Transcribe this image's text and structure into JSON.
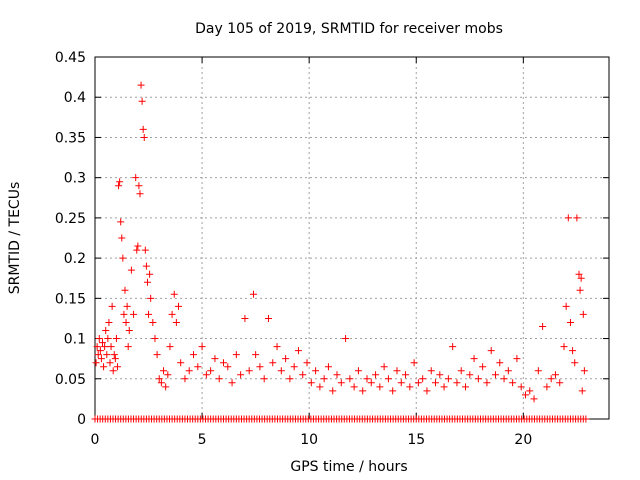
{
  "chart_data": {
    "type": "scatter",
    "title": "Day 105 of 2019, SRMTID for receiver mobs",
    "xlabel": "GPS time / hours",
    "ylabel": "SRMTID / TECUs",
    "xlim": [
      0,
      24
    ],
    "ylim": [
      0,
      0.45
    ],
    "xticks": [
      0,
      5,
      10,
      15,
      20
    ],
    "yticks": [
      0,
      0.05,
      0.1,
      0.15,
      0.2,
      0.25,
      0.3,
      0.35,
      0.4,
      0.45
    ],
    "xtick_labels": [
      "0",
      "5",
      "10",
      "15",
      "20"
    ],
    "ytick_labels": [
      "0",
      "0.05",
      "0.1",
      "0.15",
      "0.2",
      "0.25",
      "0.3",
      "0.35",
      "0.4",
      "0.45"
    ],
    "grid": true,
    "marker": "plus",
    "series": [
      {
        "name": "mobs",
        "color": "#ff0000",
        "points": [
          [
            0.05,
            0.07
          ],
          [
            0.1,
            0.09
          ],
          [
            0.15,
            0.08
          ],
          [
            0.2,
            0.1
          ],
          [
            0.25,
            0.085
          ],
          [
            0.3,
            0.075
          ],
          [
            0.35,
            0.095
          ],
          [
            0.4,
            0.065
          ],
          [
            0.45,
            0.09
          ],
          [
            0.5,
            0.11
          ],
          [
            0.55,
            0.08
          ],
          [
            0.6,
            0.1
          ],
          [
            0.65,
            0.12
          ],
          [
            0.7,
            0.07
          ],
          [
            0.75,
            0.09
          ],
          [
            0.8,
            0.14
          ],
          [
            0.85,
            0.06
          ],
          [
            0.9,
            0.08
          ],
          [
            0.95,
            0.075
          ],
          [
            1.0,
            0.1
          ],
          [
            1.05,
            0.065
          ],
          [
            1.1,
            0.29
          ],
          [
            1.15,
            0.295
          ],
          [
            1.2,
            0.245
          ],
          [
            1.25,
            0.225
          ],
          [
            1.3,
            0.2
          ],
          [
            1.35,
            0.13
          ],
          [
            1.4,
            0.16
          ],
          [
            1.45,
            0.12
          ],
          [
            1.5,
            0.14
          ],
          [
            1.55,
            0.09
          ],
          [
            1.6,
            0.11
          ],
          [
            1.7,
            0.185
          ],
          [
            1.8,
            0.13
          ],
          [
            1.9,
            0.3
          ],
          [
            1.95,
            0.21
          ],
          [
            2.0,
            0.215
          ],
          [
            2.05,
            0.29
          ],
          [
            2.1,
            0.28
          ],
          [
            2.15,
            0.415
          ],
          [
            2.2,
            0.395
          ],
          [
            2.25,
            0.36
          ],
          [
            2.3,
            0.35
          ],
          [
            2.35,
            0.21
          ],
          [
            2.4,
            0.19
          ],
          [
            2.45,
            0.17
          ],
          [
            2.5,
            0.13
          ],
          [
            2.55,
            0.18
          ],
          [
            2.6,
            0.15
          ],
          [
            2.7,
            0.12
          ],
          [
            2.8,
            0.1
          ],
          [
            2.9,
            0.08
          ],
          [
            3.0,
            0.05
          ],
          [
            3.1,
            0.045
          ],
          [
            3.2,
            0.06
          ],
          [
            3.3,
            0.04
          ],
          [
            3.4,
            0.055
          ],
          [
            3.5,
            0.09
          ],
          [
            3.6,
            0.13
          ],
          [
            3.7,
            0.155
          ],
          [
            3.8,
            0.12
          ],
          [
            3.9,
            0.14
          ],
          [
            4.0,
            0.07
          ],
          [
            4.2,
            0.05
          ],
          [
            4.4,
            0.06
          ],
          [
            4.6,
            0.08
          ],
          [
            4.8,
            0.065
          ],
          [
            5.0,
            0.09
          ],
          [
            5.2,
            0.055
          ],
          [
            5.4,
            0.06
          ],
          [
            5.6,
            0.075
          ],
          [
            5.8,
            0.05
          ],
          [
            6.0,
            0.07
          ],
          [
            6.2,
            0.065
          ],
          [
            6.4,
            0.045
          ],
          [
            6.6,
            0.08
          ],
          [
            6.8,
            0.055
          ],
          [
            7.0,
            0.125
          ],
          [
            7.2,
            0.06
          ],
          [
            7.4,
            0.155
          ],
          [
            7.5,
            0.08
          ],
          [
            7.7,
            0.065
          ],
          [
            7.9,
            0.05
          ],
          [
            8.1,
            0.125
          ],
          [
            8.3,
            0.07
          ],
          [
            8.5,
            0.09
          ],
          [
            8.7,
            0.06
          ],
          [
            8.9,
            0.075
          ],
          [
            9.1,
            0.05
          ],
          [
            9.3,
            0.065
          ],
          [
            9.5,
            0.085
          ],
          [
            9.7,
            0.055
          ],
          [
            9.9,
            0.07
          ],
          [
            10.1,
            0.045
          ],
          [
            10.3,
            0.06
          ],
          [
            10.5,
            0.04
          ],
          [
            10.7,
            0.05
          ],
          [
            10.9,
            0.065
          ],
          [
            11.1,
            0.035
          ],
          [
            11.3,
            0.055
          ],
          [
            11.5,
            0.045
          ],
          [
            11.7,
            0.1
          ],
          [
            11.9,
            0.05
          ],
          [
            12.1,
            0.04
          ],
          [
            12.3,
            0.06
          ],
          [
            12.5,
            0.035
          ],
          [
            12.7,
            0.05
          ],
          [
            12.9,
            0.045
          ],
          [
            13.1,
            0.055
          ],
          [
            13.3,
            0.04
          ],
          [
            13.5,
            0.065
          ],
          [
            13.7,
            0.05
          ],
          [
            13.9,
            0.035
          ],
          [
            14.1,
            0.06
          ],
          [
            14.3,
            0.045
          ],
          [
            14.5,
            0.055
          ],
          [
            14.7,
            0.04
          ],
          [
            14.9,
            0.07
          ],
          [
            15.1,
            0.045
          ],
          [
            15.3,
            0.05
          ],
          [
            15.5,
            0.035
          ],
          [
            15.7,
            0.06
          ],
          [
            15.9,
            0.045
          ],
          [
            16.1,
            0.055
          ],
          [
            16.3,
            0.04
          ],
          [
            16.5,
            0.05
          ],
          [
            16.7,
            0.09
          ],
          [
            16.9,
            0.045
          ],
          [
            17.1,
            0.06
          ],
          [
            17.3,
            0.04
          ],
          [
            17.5,
            0.055
          ],
          [
            17.7,
            0.075
          ],
          [
            17.9,
            0.05
          ],
          [
            18.1,
            0.065
          ],
          [
            18.3,
            0.045
          ],
          [
            18.5,
            0.085
          ],
          [
            18.7,
            0.055
          ],
          [
            18.9,
            0.07
          ],
          [
            19.1,
            0.05
          ],
          [
            19.3,
            0.06
          ],
          [
            19.5,
            0.045
          ],
          [
            19.7,
            0.075
          ],
          [
            19.9,
            0.04
          ],
          [
            20.1,
            0.03
          ],
          [
            20.3,
            0.035
          ],
          [
            20.5,
            0.025
          ],
          [
            20.7,
            0.06
          ],
          [
            20.9,
            0.115
          ],
          [
            21.1,
            0.04
          ],
          [
            21.3,
            0.05
          ],
          [
            21.5,
            0.055
          ],
          [
            21.7,
            0.045
          ],
          [
            21.9,
            0.09
          ],
          [
            22.0,
            0.14
          ],
          [
            22.1,
            0.25
          ],
          [
            22.2,
            0.12
          ],
          [
            22.3,
            0.085
          ],
          [
            22.4,
            0.07
          ],
          [
            22.5,
            0.25
          ],
          [
            22.6,
            0.18
          ],
          [
            22.65,
            0.16
          ],
          [
            22.7,
            0.175
          ],
          [
            22.75,
            0.035
          ],
          [
            22.8,
            0.13
          ],
          [
            22.85,
            0.06
          ]
        ]
      }
    ]
  }
}
